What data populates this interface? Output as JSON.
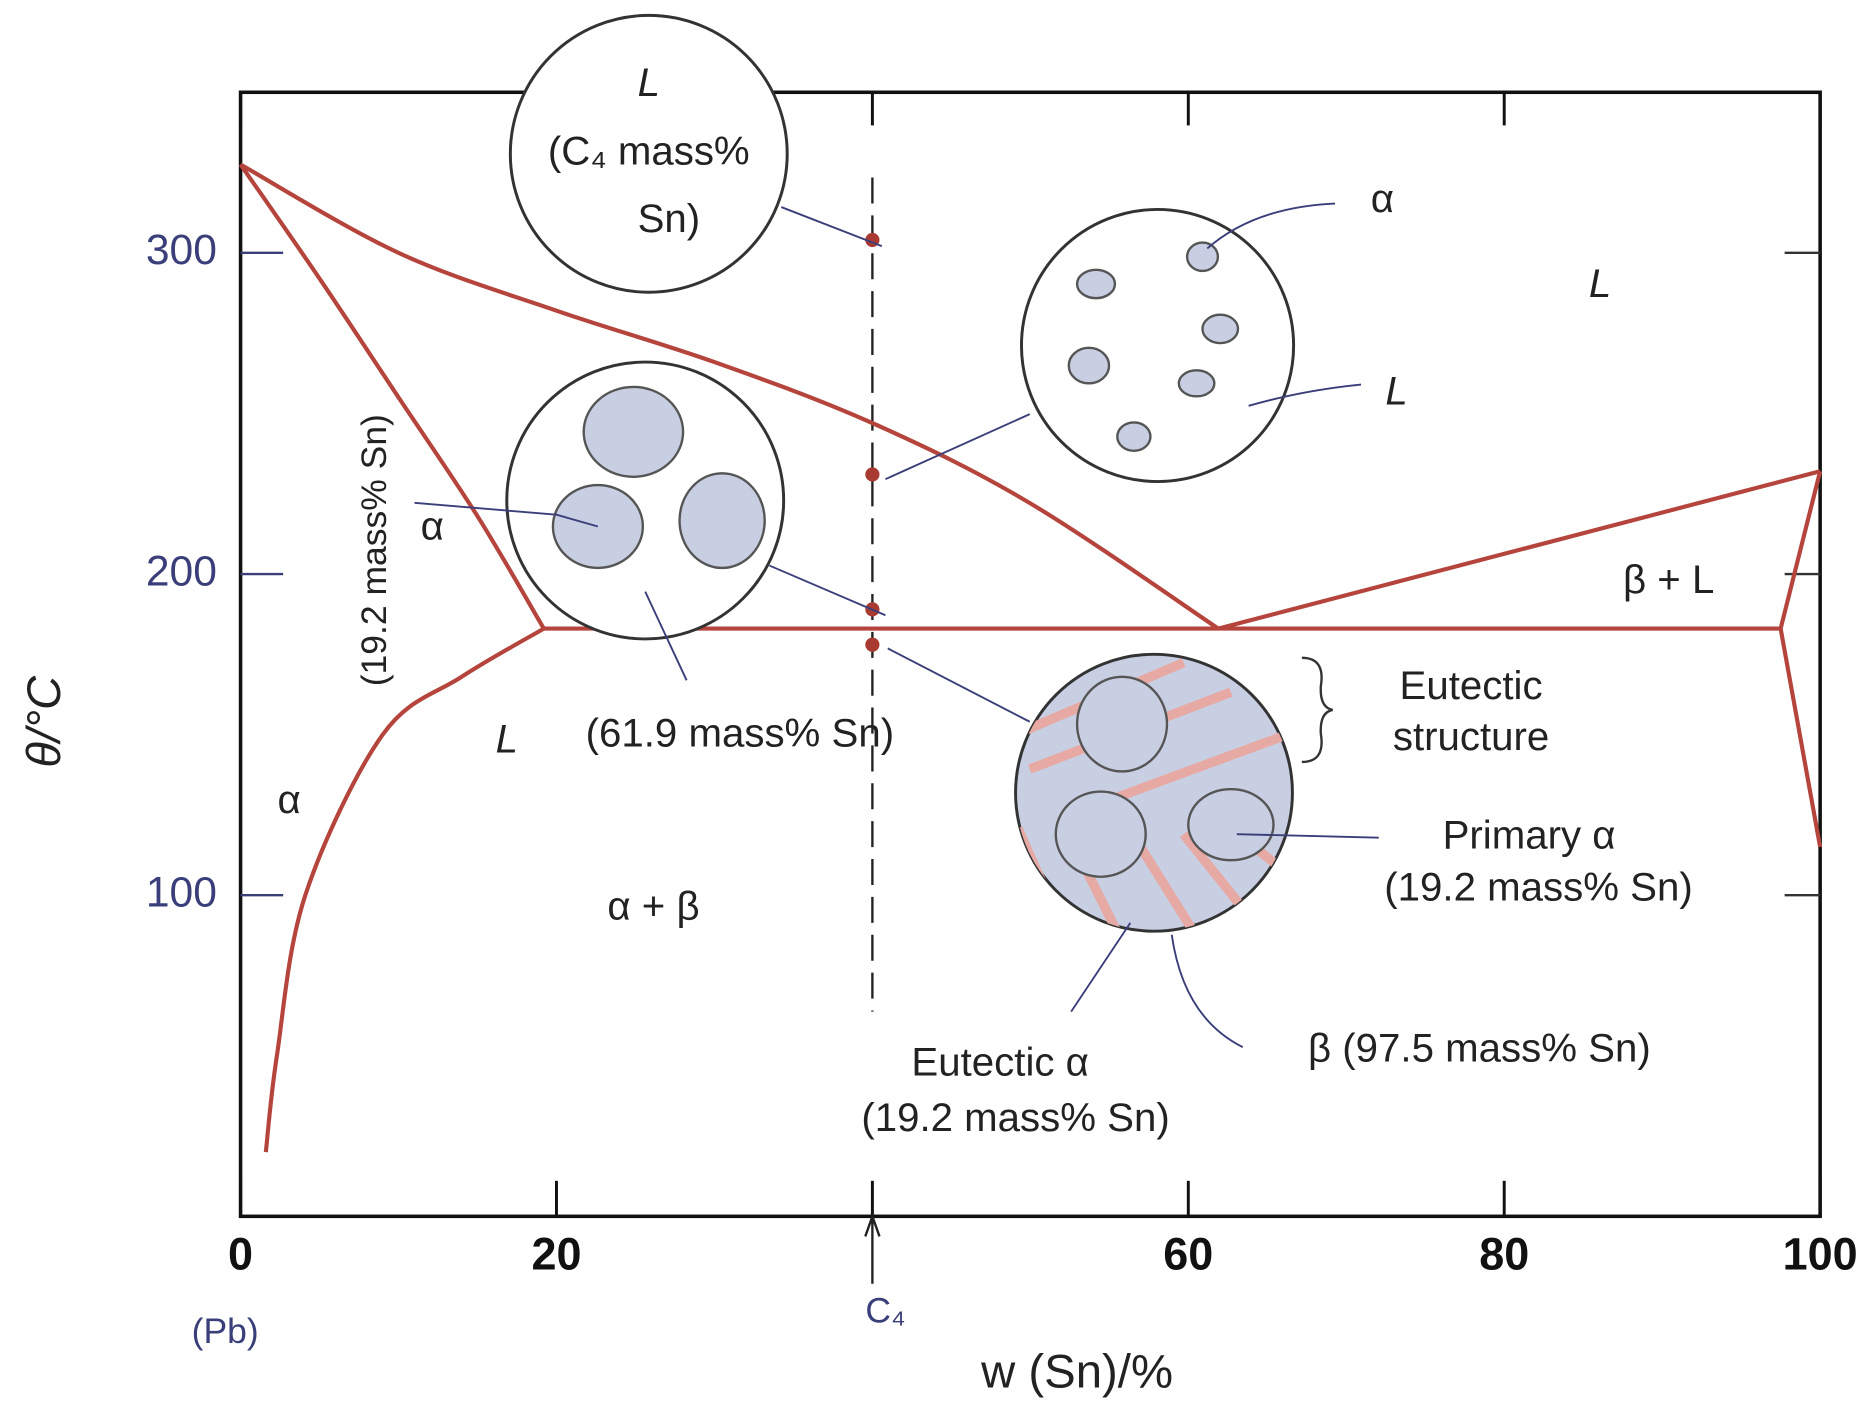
{
  "chart_data": {
    "type": "line",
    "xlabel": "w (Sn)/%",
    "ylabel": "θ/°C",
    "xlim": [
      0,
      100
    ],
    "ylim": [
      0,
      350
    ],
    "xticks": [
      0,
      20,
      40,
      60,
      80,
      100
    ],
    "yticks": [
      100,
      200,
      300
    ],
    "x_tick_labels": [
      "0",
      "20",
      "60",
      "80",
      "100"
    ],
    "color": "#b5453c",
    "series": [
      {
        "x": [
          0,
          10,
          20,
          30,
          40,
          50,
          61.9
        ],
        "values": [
          327.5,
          300,
          282,
          266,
          247,
          222,
          183
        ]
      },
      {
        "x": [
          61.9,
          100
        ],
        "values": [
          183,
          232
        ]
      },
      {
        "x": [
          0,
          5,
          10,
          15,
          19.2
        ],
        "values": [
          327.5,
          292,
          255,
          218,
          183
        ]
      },
      {
        "x": [
          19.2,
          14,
          9,
          4.1,
          2.3,
          1.6
        ],
        "values": [
          183,
          168,
          150,
          100,
          50,
          20
        ]
      },
      {
        "x": [
          19.2,
          97.5
        ],
        "values": [
          183,
          183
        ]
      },
      {
        "x": [
          97.5,
          100
        ],
        "values": [
          183,
          232
        ]
      },
      {
        "x": [
          97.5,
          100
        ],
        "values": [
          183,
          115
        ]
      }
    ],
    "markers": {
      "x": [
        40,
        40,
        40,
        40
      ],
      "y": [
        304,
        231,
        189,
        178
      ],
      "color": "#a83a32"
    },
    "annotations": [
      "L",
      "(C₄ mass%",
      "Sn)",
      "α",
      "L",
      "L",
      "(19.2 mass% Sn)",
      "α",
      "β + L",
      "Eutectic",
      "structure",
      "L",
      "(61.9 mass% Sn)",
      "α",
      "α + β",
      "Primary α",
      "(19.2 mass% Sn)",
      "Eutectic α",
      "(19.2 mass% Sn)",
      "β (97.5 mass% Sn)",
      "(Pb)",
      "C₄"
    ]
  }
}
